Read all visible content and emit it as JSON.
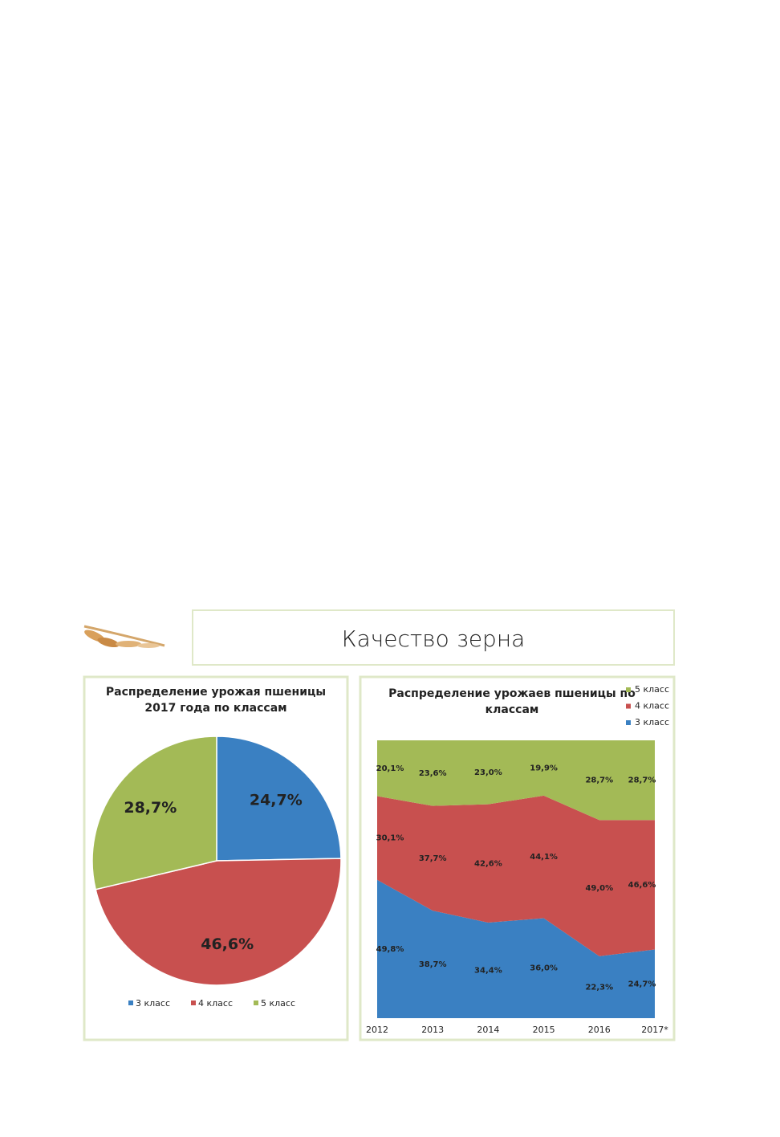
{
  "header": {
    "title": "Качество зерна"
  },
  "chart_data": [
    {
      "type": "pie",
      "title": [
        "Распределение урожая пшеницы",
        "2017 года по классам"
      ],
      "categories": [
        "3 класс",
        "4 класс",
        "5 класс"
      ],
      "values": [
        24.7,
        46.6,
        28.7
      ],
      "value_labels": [
        "24,7%",
        "46,6%",
        "28,7%"
      ],
      "colors": [
        "#3a80c2",
        "#c8504f",
        "#a3ba56"
      ],
      "legend": "bottom"
    },
    {
      "type": "area",
      "stacked": true,
      "title": [
        "Распределение урожаев пшеницы по",
        "классам"
      ],
      "categories": [
        "2012",
        "2013",
        "2014",
        "2015",
        "2016",
        "2017*"
      ],
      "ylim": [
        0,
        100
      ],
      "legend": "top-right",
      "series": [
        {
          "name": "3 класс",
          "color": "#3a80c2",
          "values": [
            49.8,
            38.7,
            34.4,
            36.0,
            22.3,
            24.7
          ],
          "value_labels": [
            "49,8%",
            "38,7%",
            "34,4%",
            "36,0%",
            "22,3%",
            "24,7%"
          ]
        },
        {
          "name": "4 класс",
          "color": "#c8504f",
          "values": [
            30.1,
            37.7,
            42.6,
            44.1,
            49.0,
            46.6
          ],
          "value_labels": [
            "30,1%",
            "37,7%",
            "42,6%",
            "44,1%",
            "49,0%",
            "46,6%"
          ]
        },
        {
          "name": "5 класс",
          "color": "#a3ba56",
          "values": [
            20.1,
            23.6,
            23.0,
            19.9,
            28.7,
            28.7
          ],
          "value_labels": [
            "20,1%",
            "23,6%",
            "23,0%",
            "19,9%",
            "28,7%",
            "28,7%"
          ]
        }
      ]
    }
  ]
}
